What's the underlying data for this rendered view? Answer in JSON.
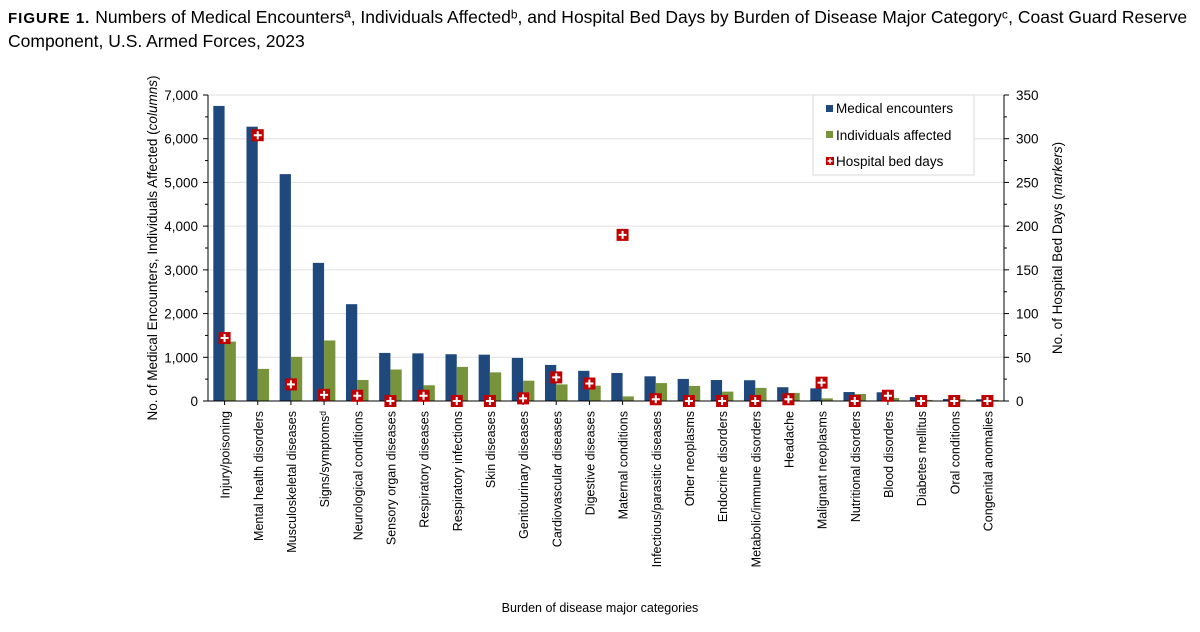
{
  "title_label": "FIGURE 1.",
  "title": "Numbers of Medical Encountersª, Individuals Affectedᵇ, and Hospital Bed Days by Burden of Disease Major Categoryᶜ, Coast Guard Reserve Component, U.S. Armed Forces, 2023",
  "chart_data": {
    "type": "bar",
    "xlabel": "Burden of disease major categories",
    "ylabel_left": "No. of Medical Encounters, Individuals Affected (columns)",
    "ylabel_right": "No. of Hospital Bed Days (markers)",
    "ylim_left": [
      0,
      7000
    ],
    "ylim_right": [
      0,
      350
    ],
    "yticks_left": [
      "0",
      "1,000",
      "2,000",
      "3,000",
      "4,000",
      "5,000",
      "6,000",
      "7,000"
    ],
    "yticks_right": [
      "0",
      "50",
      "100",
      "150",
      "200",
      "250",
      "300",
      "350"
    ],
    "grid": true,
    "legend_position": "top-right",
    "colors": {
      "encounters": "#1f497d",
      "individuals": "#77933c",
      "bed_days": "#c00000"
    },
    "categories": [
      "Injury/poisoning",
      "Mental health disorders",
      "Musculoskeletal diseases",
      "Signs/symptomsᵈ",
      "Neurological conditions",
      "Sensory organ diseases",
      "Respiratory diseases",
      "Respiratory infections",
      "Skin diseases",
      "Genitourinary diseases",
      "Cardiovascular diseases",
      "Digestive diseases",
      "Maternal conditions",
      "Infectious/parasitic diseases",
      "Other neoplasms",
      "Endocrine disorders",
      "Metabolic/immune disorders",
      "Headache",
      "Malignant neoplasms",
      "Nutritional disorders",
      "Blood disorders",
      "Diabetes mellitus",
      "Oral conditions",
      "Congenital anomalies"
    ],
    "series": [
      {
        "name": "Medical encounters",
        "type": "bar",
        "axis": "left",
        "values": [
          6750,
          6275,
          5190,
          3160,
          2215,
          1100,
          1090,
          1070,
          1060,
          985,
          825,
          690,
          640,
          565,
          505,
          480,
          475,
          315,
          290,
          205,
          200,
          90,
          45,
          40
        ]
      },
      {
        "name": "Individuals affected",
        "type": "bar",
        "axis": "left",
        "values": [
          1360,
          735,
          1010,
          1385,
          480,
          720,
          360,
          780,
          655,
          465,
          380,
          350,
          105,
          410,
          345,
          215,
          300,
          185,
          60,
          160,
          70,
          25,
          40,
          25
        ]
      },
      {
        "name": "Hospital bed days",
        "type": "marker",
        "axis": "right",
        "values": [
          72,
          304,
          19,
          7,
          6,
          0,
          6,
          0,
          0,
          3,
          27,
          20,
          190,
          2,
          0,
          0,
          0,
          2,
          21,
          0,
          6,
          0,
          0,
          0
        ]
      }
    ]
  }
}
